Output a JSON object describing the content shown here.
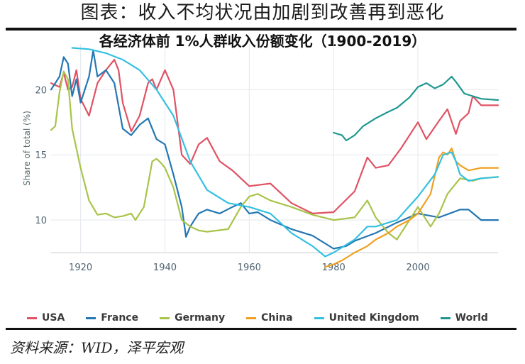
{
  "figure_title": "图表：收入不均状况由加剧到改善再到恶化",
  "source_note": "资料来源：WID，泽平宏观",
  "chart_data": {
    "type": "line",
    "title": "各经济体前 1%人群收入份额变化（1900-2019）",
    "xlabel": "",
    "ylabel": "Share of total (%)",
    "xlim": [
      1913,
      2019
    ],
    "ylim": [
      7.5,
      23.5
    ],
    "xticks": [
      1920,
      1940,
      1960,
      1980,
      2000
    ],
    "yticks": [
      10,
      15,
      20
    ],
    "grid": true,
    "legend_position": "bottom",
    "series": [
      {
        "name": "USA",
        "color": "#e05264",
        "x": [
          1913,
          1915,
          1916,
          1917,
          1918,
          1919,
          1920,
          1922,
          1924,
          1926,
          1928,
          1929,
          1930,
          1932,
          1934,
          1936,
          1937,
          1938,
          1940,
          1942,
          1944,
          1946,
          1948,
          1950,
          1953,
          1956,
          1960,
          1965,
          1970,
          1975,
          1980,
          1985,
          1988,
          1990,
          1993,
          1996,
          2000,
          2002,
          2005,
          2007,
          2009,
          2010,
          2012,
          2013,
          2015,
          2019
        ],
        "y": [
          20.5,
          20.2,
          21.3,
          20.0,
          20.2,
          21.5,
          19.3,
          18.0,
          20.5,
          21.5,
          22.3,
          21.5,
          19.0,
          16.8,
          18.0,
          20.5,
          20.8,
          20.0,
          21.5,
          20.0,
          15.0,
          14.3,
          15.8,
          16.3,
          14.5,
          13.8,
          12.6,
          12.8,
          11.3,
          10.5,
          10.6,
          12.2,
          14.8,
          14.0,
          14.2,
          15.5,
          17.5,
          16.2,
          17.6,
          18.5,
          16.6,
          17.6,
          18.2,
          19.5,
          18.8,
          18.8
        ]
      },
      {
        "name": "France",
        "color": "#2477b3",
        "x": [
          1913,
          1915,
          1916,
          1917,
          1918,
          1919,
          1920,
          1922,
          1923,
          1924,
          1926,
          1928,
          1930,
          1932,
          1934,
          1936,
          1938,
          1940,
          1942,
          1944,
          1945,
          1946,
          1948,
          1950,
          1953,
          1956,
          1958,
          1960,
          1962,
          1965,
          1970,
          1975,
          1980,
          1983,
          1985,
          1990,
          1995,
          2000,
          2005,
          2010,
          2012,
          2015,
          2019
        ],
        "y": [
          20.0,
          21.0,
          22.5,
          22.0,
          19.5,
          20.8,
          19.0,
          21.0,
          23.0,
          21.0,
          21.5,
          20.5,
          17.0,
          16.5,
          17.3,
          17.8,
          16.2,
          15.8,
          13.5,
          11.0,
          8.7,
          9.5,
          10.5,
          10.8,
          10.5,
          11.0,
          11.3,
          10.5,
          10.6,
          10.0,
          9.3,
          8.8,
          7.8,
          8.0,
          8.4,
          9.0,
          9.8,
          10.5,
          10.2,
          10.8,
          10.8,
          10.0,
          10.0
        ]
      },
      {
        "name": "Germany",
        "color": "#a8c44a",
        "x": [
          1913,
          1914,
          1915,
          1916,
          1917,
          1918,
          1920,
          1922,
          1924,
          1926,
          1928,
          1930,
          1932,
          1933,
          1935,
          1937,
          1938,
          1939,
          1940,
          1942,
          1944,
          1946,
          1948,
          1950,
          1955,
          1958,
          1960,
          1962,
          1965,
          1970,
          1975,
          1980,
          1985,
          1988,
          1990,
          1993,
          1995,
          2000,
          2003,
          2005,
          2007,
          2010,
          2013,
          2015,
          2019
        ],
        "y": [
          16.9,
          17.2,
          19.8,
          21.4,
          20.8,
          17.0,
          14.0,
          11.5,
          10.4,
          10.5,
          10.2,
          10.3,
          10.5,
          10.0,
          11.0,
          14.5,
          14.7,
          14.4,
          14.0,
          12.5,
          10.0,
          9.5,
          9.2,
          9.1,
          9.3,
          11.0,
          11.8,
          12.0,
          11.5,
          11.0,
          10.4,
          10.0,
          10.2,
          11.5,
          10.2,
          9.0,
          8.5,
          11.0,
          9.5,
          10.5,
          12.0,
          13.2,
          13.0,
          13.2,
          13.3
        ]
      },
      {
        "name": "China",
        "color": "#f0a020",
        "x": [
          1978,
          1980,
          1982,
          1985,
          1988,
          1990,
          1993,
          1995,
          1998,
          2000,
          2003,
          2005,
          2006,
          2007,
          2008,
          2009,
          2010,
          2012,
          2015,
          2019
        ],
        "y": [
          6.4,
          6.6,
          6.9,
          7.5,
          8.0,
          8.5,
          9.0,
          9.5,
          10.0,
          10.5,
          12.0,
          14.8,
          15.2,
          15.0,
          15.5,
          14.5,
          14.2,
          13.8,
          14.0,
          14.0
        ]
      },
      {
        "name": "United Kingdom",
        "color": "#34c0e0",
        "x": [
          1918,
          1922,
          1926,
          1930,
          1934,
          1938,
          1942,
          1946,
          1950,
          1955,
          1960,
          1965,
          1970,
          1975,
          1978,
          1980,
          1985,
          1988,
          1990,
          1993,
          1995,
          2000,
          2004,
          2006,
          2008,
          2009,
          2010,
          2012,
          2015,
          2019
        ],
        "y": [
          23.2,
          23.1,
          22.8,
          22.3,
          21.5,
          20.0,
          18.0,
          14.5,
          12.3,
          11.3,
          11.0,
          10.5,
          9.0,
          8.0,
          7.2,
          7.5,
          8.5,
          9.5,
          9.5,
          9.8,
          10.0,
          11.8,
          13.5,
          15.0,
          15.2,
          14.5,
          13.5,
          13.0,
          13.2,
          13.3
        ]
      },
      {
        "name": "World",
        "color": "#1f9790",
        "x": [
          1980,
          1982,
          1983,
          1985,
          1987,
          1990,
          1993,
          1995,
          1998,
          2000,
          2002,
          2004,
          2006,
          2008,
          2009,
          2011,
          2013,
          2015,
          2019
        ],
        "y": [
          16.7,
          16.5,
          16.1,
          16.5,
          17.2,
          17.8,
          18.3,
          18.6,
          19.4,
          20.2,
          20.5,
          20.1,
          20.4,
          21.0,
          20.6,
          19.7,
          19.5,
          19.3,
          19.2
        ]
      }
    ]
  }
}
